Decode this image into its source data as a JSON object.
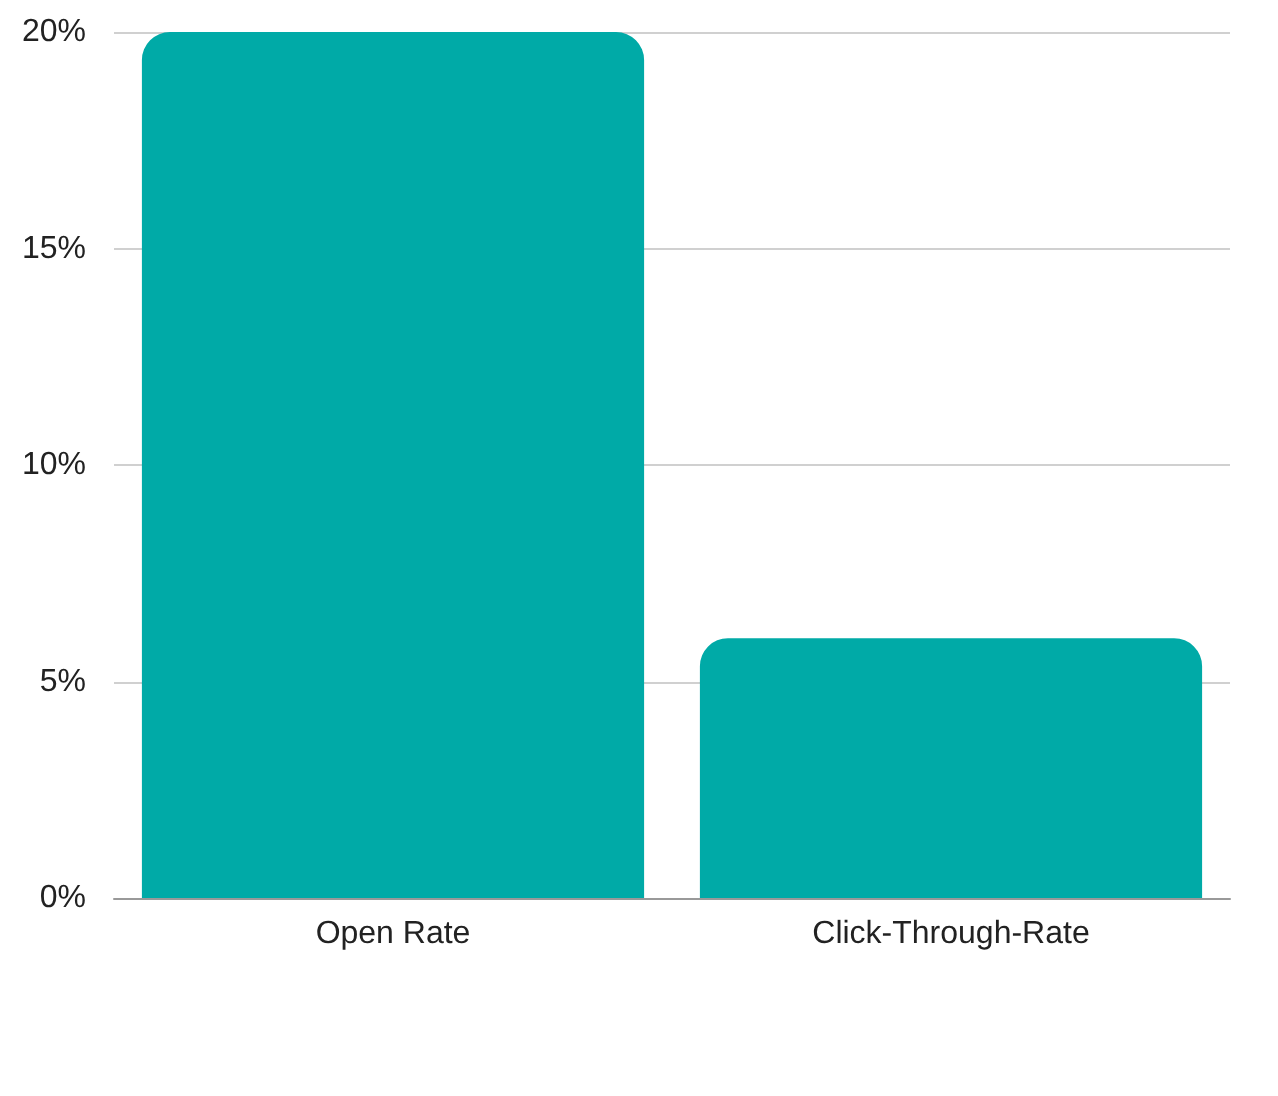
{
  "chart_data": {
    "type": "bar",
    "categories": [
      "Open Rate",
      "Click-Through-Rate"
    ],
    "values": [
      20,
      6
    ],
    "color": "#00aaa7",
    "ylim": [
      0,
      20
    ],
    "yticks": [
      {
        "value": 0,
        "label": "0%"
      },
      {
        "value": 5,
        "label": "5%"
      },
      {
        "value": 10,
        "label": "10%"
      },
      {
        "value": 15,
        "label": "15%"
      },
      {
        "value": 20,
        "label": "20%"
      }
    ],
    "grid": "y"
  }
}
